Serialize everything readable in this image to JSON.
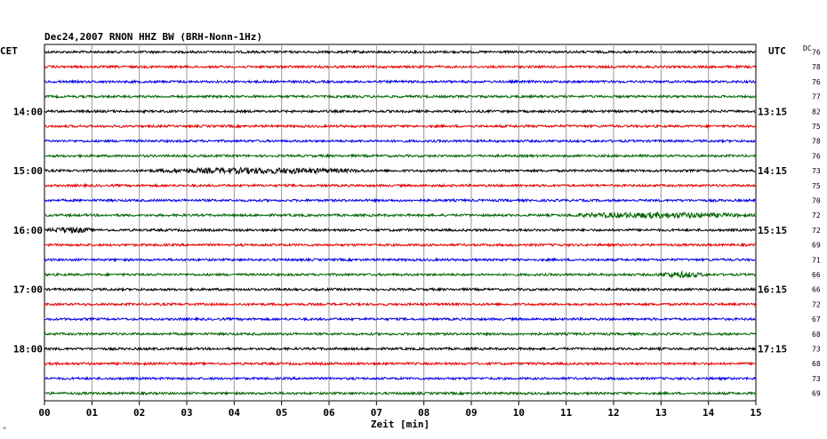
{
  "chart_data": {
    "type": "line",
    "title": "Dec24,2007   RNON HHZ BW (BRH-Nonn-1Hz)",
    "left_timezone": "CET",
    "right_timezone": "UTC",
    "dc_label": "DC",
    "xlabel": "Zeit [min]",
    "xlim": [
      0,
      15
    ],
    "x_ticks": [
      "00",
      "01",
      "02",
      "03",
      "04",
      "05",
      "06",
      "07",
      "08",
      "09",
      "10",
      "11",
      "12",
      "13",
      "14",
      "15"
    ],
    "corner_mark": "^",
    "trace_colors": [
      "#000000",
      "#e60000",
      "#0000e6",
      "#006400"
    ],
    "grid": true,
    "traces": [
      {
        "index": 0,
        "color": "black",
        "dc": "76"
      },
      {
        "index": 1,
        "color": "red",
        "dc": "78"
      },
      {
        "index": 2,
        "color": "blue",
        "dc": "76"
      },
      {
        "index": 3,
        "color": "green",
        "dc": "77"
      },
      {
        "index": 4,
        "color": "black",
        "dc": "82",
        "left_label": "14:00",
        "right_label": "13:15"
      },
      {
        "index": 5,
        "color": "red",
        "dc": "75"
      },
      {
        "index": 6,
        "color": "blue",
        "dc": "78"
      },
      {
        "index": 7,
        "color": "green",
        "dc": "76"
      },
      {
        "index": 8,
        "color": "black",
        "dc": "73",
        "left_label": "15:00",
        "right_label": "14:15"
      },
      {
        "index": 9,
        "color": "red",
        "dc": "75"
      },
      {
        "index": 10,
        "color": "blue",
        "dc": "70"
      },
      {
        "index": 11,
        "color": "green",
        "dc": "72"
      },
      {
        "index": 12,
        "color": "black",
        "dc": "72",
        "left_label": "16:00",
        "right_label": "15:15"
      },
      {
        "index": 13,
        "color": "red",
        "dc": "69"
      },
      {
        "index": 14,
        "color": "blue",
        "dc": "71"
      },
      {
        "index": 15,
        "color": "green",
        "dc": "66"
      },
      {
        "index": 16,
        "color": "black",
        "dc": "66",
        "left_label": "17:00",
        "right_label": "16:15"
      },
      {
        "index": 17,
        "color": "red",
        "dc": "72"
      },
      {
        "index": 18,
        "color": "blue",
        "dc": "67"
      },
      {
        "index": 19,
        "color": "green",
        "dc": "68"
      },
      {
        "index": 20,
        "color": "black",
        "dc": "73",
        "left_label": "18:00",
        "right_label": "17:15"
      },
      {
        "index": 21,
        "color": "red",
        "dc": "68"
      },
      {
        "index": 22,
        "color": "blue",
        "dc": "73"
      },
      {
        "index": 23,
        "color": "green",
        "dc": "69"
      }
    ],
    "bursts": [
      {
        "trace": 8,
        "from_min": 2.0,
        "to_min": 7.0,
        "level": "moderate"
      },
      {
        "trace": 11,
        "from_min": 10.8,
        "to_min": 15.0,
        "level": "moderate"
      },
      {
        "trace": 12,
        "from_min": 0.0,
        "to_min": 1.1,
        "level": "moderate"
      },
      {
        "trace": 15,
        "from_min": 12.8,
        "to_min": 14.0,
        "level": "moderate"
      }
    ]
  }
}
